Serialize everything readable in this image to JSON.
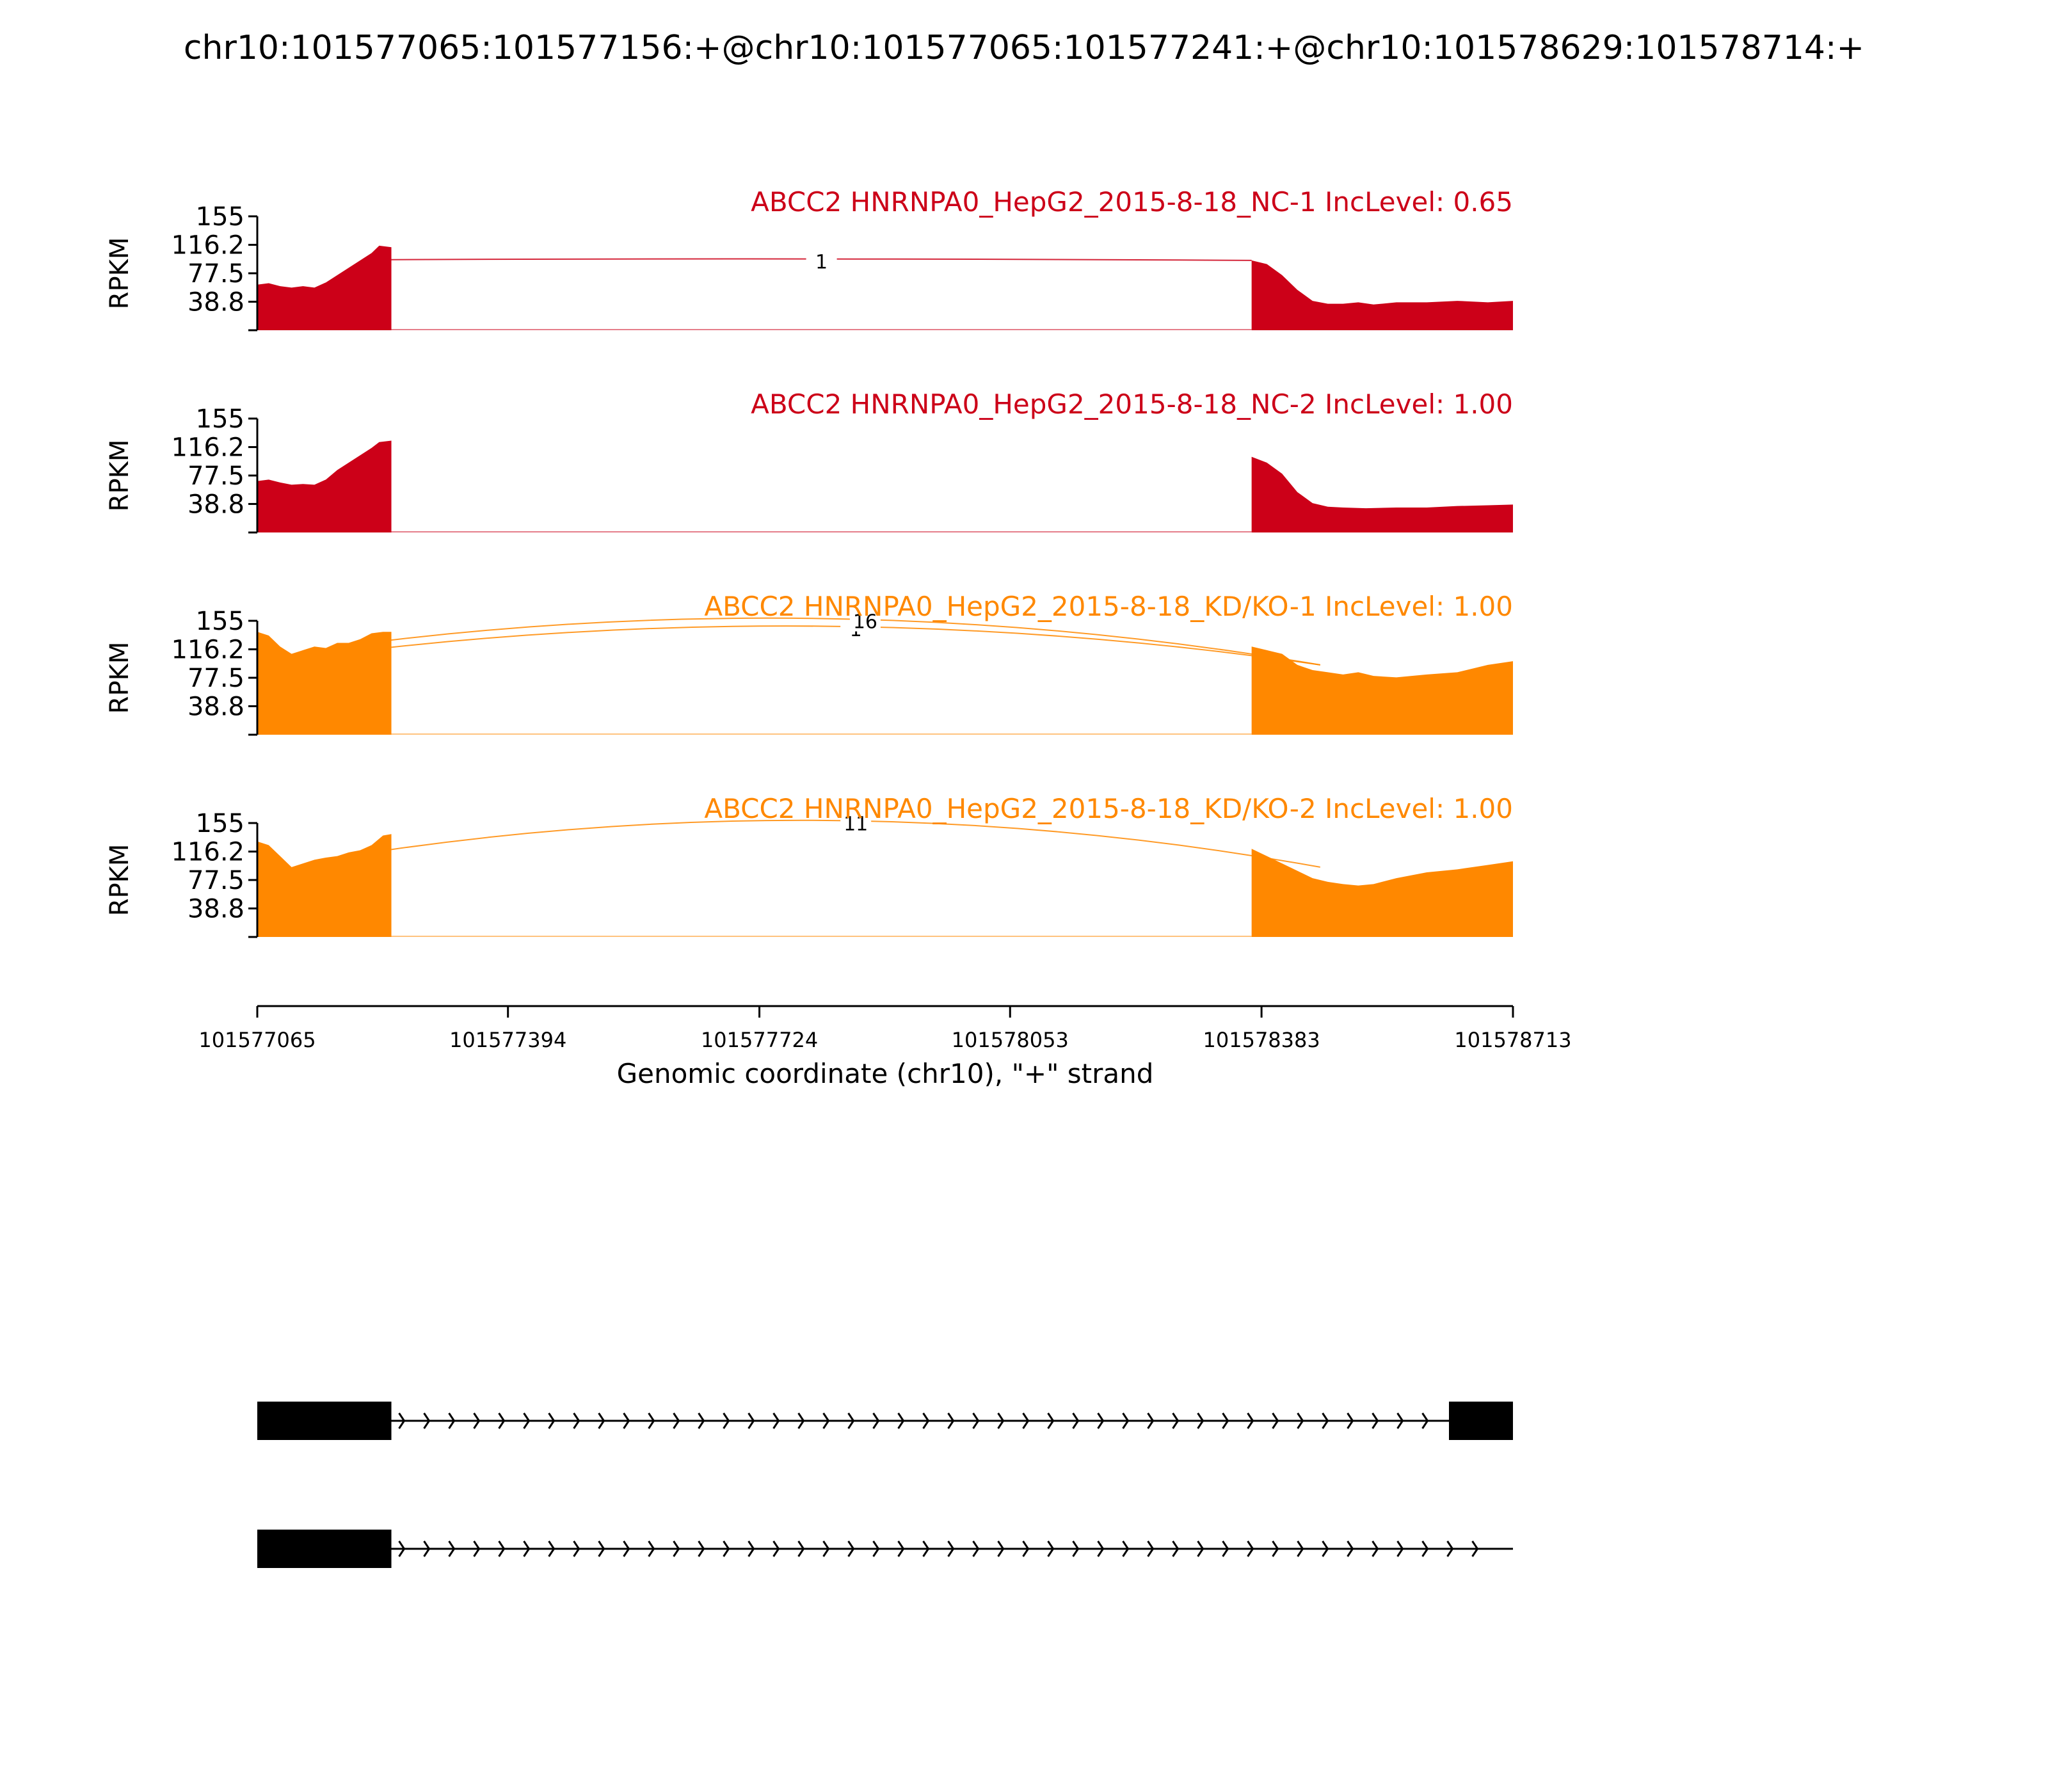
{
  "title": "chr10:101577065:101577156:+@chr10:101577065:101577241:+@chr10:101578629:101578714:+",
  "colors": {
    "nc": "#cc0018",
    "kd": "#ff8800",
    "axis": "#000000",
    "gene": "#000000"
  },
  "chart_data": {
    "type": "area",
    "xlabel": "Genomic coordinate (chr10), \"+\" strand",
    "xlim": [
      101577065,
      101578713
    ],
    "x_ticks": [
      "101577065",
      "101577394",
      "101577724",
      "101578053",
      "101578383",
      "101578713"
    ],
    "ylabel": "RPKM",
    "ylim": [
      0,
      155
    ],
    "y_ticks": [
      "155",
      "116.2",
      "77.5",
      "38.8"
    ],
    "exons": [
      {
        "start": 101577065,
        "end": 101577241
      },
      {
        "start": 101578370,
        "end": 101578713
      }
    ],
    "tracks": [
      {
        "label": "ABCC2 HNRNPA0_HepG2_2015-8-18_NC-1 IncLevel: 0.65",
        "color_key": "nc",
        "exon1_profile": [
          [
            101577065,
            62
          ],
          [
            101577080,
            64
          ],
          [
            101577095,
            60
          ],
          [
            101577110,
            58
          ],
          [
            101577125,
            60
          ],
          [
            101577140,
            58
          ],
          [
            101577155,
            65
          ],
          [
            101577170,
            75
          ],
          [
            101577185,
            85
          ],
          [
            101577200,
            95
          ],
          [
            101577215,
            105
          ],
          [
            101577225,
            115
          ],
          [
            101577241,
            113
          ]
        ],
        "exon2_profile": [
          [
            101578370,
            95
          ],
          [
            101578390,
            90
          ],
          [
            101578410,
            75
          ],
          [
            101578430,
            55
          ],
          [
            101578450,
            40
          ],
          [
            101578470,
            36
          ],
          [
            101578490,
            36
          ],
          [
            101578510,
            38
          ],
          [
            101578530,
            35
          ],
          [
            101578560,
            38
          ],
          [
            101578600,
            38
          ],
          [
            101578640,
            40
          ],
          [
            101578680,
            38
          ],
          [
            101578713,
            40
          ]
        ],
        "junctions": [
          {
            "label": "1",
            "start": 101577241,
            "end": 101578370,
            "peak": 97
          }
        ]
      },
      {
        "label": "ABCC2 HNRNPA0_HepG2_2015-8-18_NC-2 IncLevel: 1.00",
        "color_key": "nc",
        "exon1_profile": [
          [
            101577065,
            70
          ],
          [
            101577080,
            72
          ],
          [
            101577095,
            68
          ],
          [
            101577110,
            65
          ],
          [
            101577125,
            66
          ],
          [
            101577140,
            65
          ],
          [
            101577155,
            72
          ],
          [
            101577170,
            85
          ],
          [
            101577185,
            95
          ],
          [
            101577200,
            105
          ],
          [
            101577215,
            115
          ],
          [
            101577225,
            123
          ],
          [
            101577241,
            125
          ]
        ],
        "exon2_profile": [
          [
            101578370,
            103
          ],
          [
            101578390,
            95
          ],
          [
            101578410,
            80
          ],
          [
            101578430,
            55
          ],
          [
            101578450,
            40
          ],
          [
            101578470,
            35
          ],
          [
            101578490,
            34
          ],
          [
            101578520,
            33
          ],
          [
            101578560,
            34
          ],
          [
            101578600,
            34
          ],
          [
            101578640,
            36
          ],
          [
            101578680,
            37
          ],
          [
            101578713,
            38
          ]
        ],
        "junctions": []
      },
      {
        "label": "ABCC2 HNRNPA0_HepG2_2015-8-18_KD/KO-1 IncLevel: 1.00",
        "color_key": "kd",
        "exon1_profile": [
          [
            101577065,
            140
          ],
          [
            101577080,
            135
          ],
          [
            101577095,
            120
          ],
          [
            101577110,
            110
          ],
          [
            101577125,
            115
          ],
          [
            101577140,
            120
          ],
          [
            101577155,
            118
          ],
          [
            101577170,
            125
          ],
          [
            101577185,
            125
          ],
          [
            101577200,
            130
          ],
          [
            101577215,
            138
          ],
          [
            101577230,
            140
          ],
          [
            101577241,
            140
          ]
        ],
        "exon2_profile": [
          [
            101578370,
            120
          ],
          [
            101578390,
            115
          ],
          [
            101578410,
            110
          ],
          [
            101578430,
            95
          ],
          [
            101578450,
            88
          ],
          [
            101578470,
            85
          ],
          [
            101578490,
            82
          ],
          [
            101578510,
            85
          ],
          [
            101578530,
            80
          ],
          [
            101578560,
            78
          ],
          [
            101578600,
            82
          ],
          [
            101578640,
            85
          ],
          [
            101578680,
            95
          ],
          [
            101578713,
            100
          ]
        ],
        "junctions": [
          {
            "label": "1",
            "start": 101577241,
            "end": 101578460,
            "peak": 147
          },
          {
            "label": "16",
            "start": 101577165,
            "end": 101578460,
            "peak": 158
          }
        ]
      },
      {
        "label": "ABCC2 HNRNPA0_HepG2_2015-8-18_KD/KO-2 IncLevel: 1.00",
        "color_key": "kd",
        "exon1_profile": [
          [
            101577065,
            130
          ],
          [
            101577080,
            125
          ],
          [
            101577095,
            110
          ],
          [
            101577110,
            95
          ],
          [
            101577125,
            100
          ],
          [
            101577140,
            105
          ],
          [
            101577155,
            108
          ],
          [
            101577170,
            110
          ],
          [
            101577185,
            115
          ],
          [
            101577200,
            118
          ],
          [
            101577215,
            125
          ],
          [
            101577230,
            138
          ],
          [
            101577241,
            140
          ]
        ],
        "exon2_profile": [
          [
            101578370,
            120
          ],
          [
            101578390,
            110
          ],
          [
            101578410,
            100
          ],
          [
            101578430,
            90
          ],
          [
            101578450,
            80
          ],
          [
            101578470,
            75
          ],
          [
            101578490,
            72
          ],
          [
            101578510,
            70
          ],
          [
            101578530,
            72
          ],
          [
            101578560,
            80
          ],
          [
            101578600,
            88
          ],
          [
            101578640,
            92
          ],
          [
            101578680,
            98
          ],
          [
            101578713,
            103
          ]
        ],
        "junctions": [
          {
            "label": "11",
            "start": 101577241,
            "end": 101578460,
            "peak": 158
          }
        ]
      }
    ],
    "transcripts": [
      {
        "exons": [
          [
            101577065,
            101577241
          ],
          [
            101578629,
            101578714
          ]
        ]
      },
      {
        "exons": [
          [
            101577065,
            101577241
          ]
        ]
      }
    ]
  }
}
